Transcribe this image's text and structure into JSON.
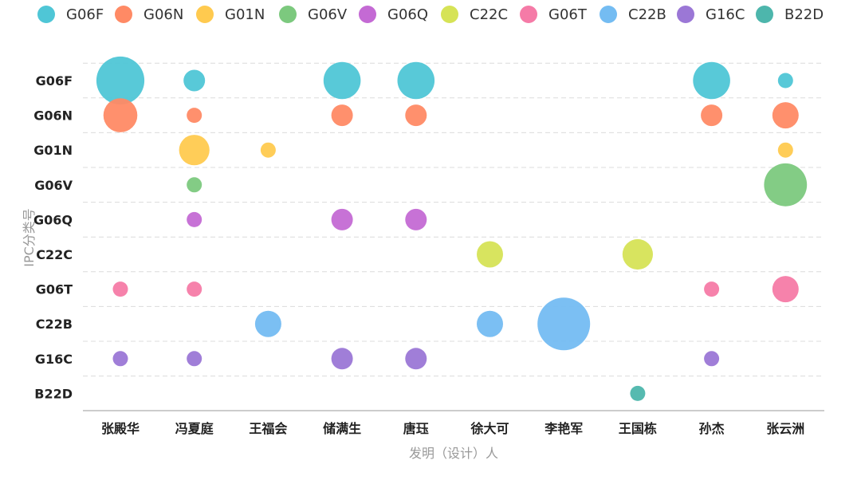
{
  "chart_data": {
    "type": "scatter",
    "subtype": "bubble",
    "xlabel": "发明（设计）人",
    "ylabel": "IPC分类号",
    "categories_x": [
      "张殿华",
      "冯夏庭",
      "王福会",
      "储满生",
      "唐珏",
      "徐大可",
      "李艳军",
      "王国栋",
      "孙杰",
      "张云洲"
    ],
    "categories_y": [
      "G06F",
      "G06N",
      "G01N",
      "G06V",
      "G06Q",
      "C22C",
      "G06T",
      "C22B",
      "G16C",
      "B22D"
    ],
    "legend_position": "top",
    "grid": "horizontal-dashed",
    "series": [
      {
        "name": "G06F",
        "color": "#4FC6D6",
        "points": [
          {
            "x": "张殿华",
            "size": 10
          },
          {
            "x": "冯夏庭",
            "size": 2
          },
          {
            "x": "储满生",
            "size": 6
          },
          {
            "x": "唐珏",
            "size": 6
          },
          {
            "x": "孙杰",
            "size": 6
          },
          {
            "x": "张云洲",
            "size": 1
          }
        ]
      },
      {
        "name": "G06N",
        "color": "#FF8A65",
        "points": [
          {
            "x": "张殿华",
            "size": 5
          },
          {
            "x": "冯夏庭",
            "size": 1
          },
          {
            "x": "储满生",
            "size": 2
          },
          {
            "x": "唐珏",
            "size": 2
          },
          {
            "x": "孙杰",
            "size": 2
          },
          {
            "x": "张云洲",
            "size": 3
          }
        ]
      },
      {
        "name": "G01N",
        "color": "#FFCA4F",
        "points": [
          {
            "x": "冯夏庭",
            "size": 4
          },
          {
            "x": "王福会",
            "size": 1
          },
          {
            "x": "张云洲",
            "size": 1
          }
        ]
      },
      {
        "name": "G06V",
        "color": "#7CC97E",
        "points": [
          {
            "x": "冯夏庭",
            "size": 1
          },
          {
            "x": "张云洲",
            "size": 8
          }
        ]
      },
      {
        "name": "G06Q",
        "color": "#C46AD4",
        "points": [
          {
            "x": "冯夏庭",
            "size": 1
          },
          {
            "x": "储满生",
            "size": 2
          },
          {
            "x": "唐珏",
            "size": 2
          }
        ]
      },
      {
        "name": "C22C",
        "color": "#D6E356",
        "points": [
          {
            "x": "徐大可",
            "size": 3
          },
          {
            "x": "王国栋",
            "size": 4
          }
        ]
      },
      {
        "name": "G06T",
        "color": "#F57BA7",
        "points": [
          {
            "x": "张殿华",
            "size": 1
          },
          {
            "x": "冯夏庭",
            "size": 1
          },
          {
            "x": "孙杰",
            "size": 1
          },
          {
            "x": "张云洲",
            "size": 3
          }
        ]
      },
      {
        "name": "C22B",
        "color": "#74BCF2",
        "points": [
          {
            "x": "王福会",
            "size": 3
          },
          {
            "x": "徐大可",
            "size": 3
          },
          {
            "x": "李艳军",
            "size": 12
          }
        ]
      },
      {
        "name": "G16C",
        "color": "#9B77D6",
        "points": [
          {
            "x": "张殿华",
            "size": 1
          },
          {
            "x": "冯夏庭",
            "size": 1
          },
          {
            "x": "储满生",
            "size": 2
          },
          {
            "x": "唐珏",
            "size": 2
          },
          {
            "x": "孙杰",
            "size": 1
          }
        ]
      },
      {
        "name": "B22D",
        "color": "#4DB6AC",
        "points": [
          {
            "x": "王国栋",
            "size": 1
          }
        ]
      }
    ]
  }
}
